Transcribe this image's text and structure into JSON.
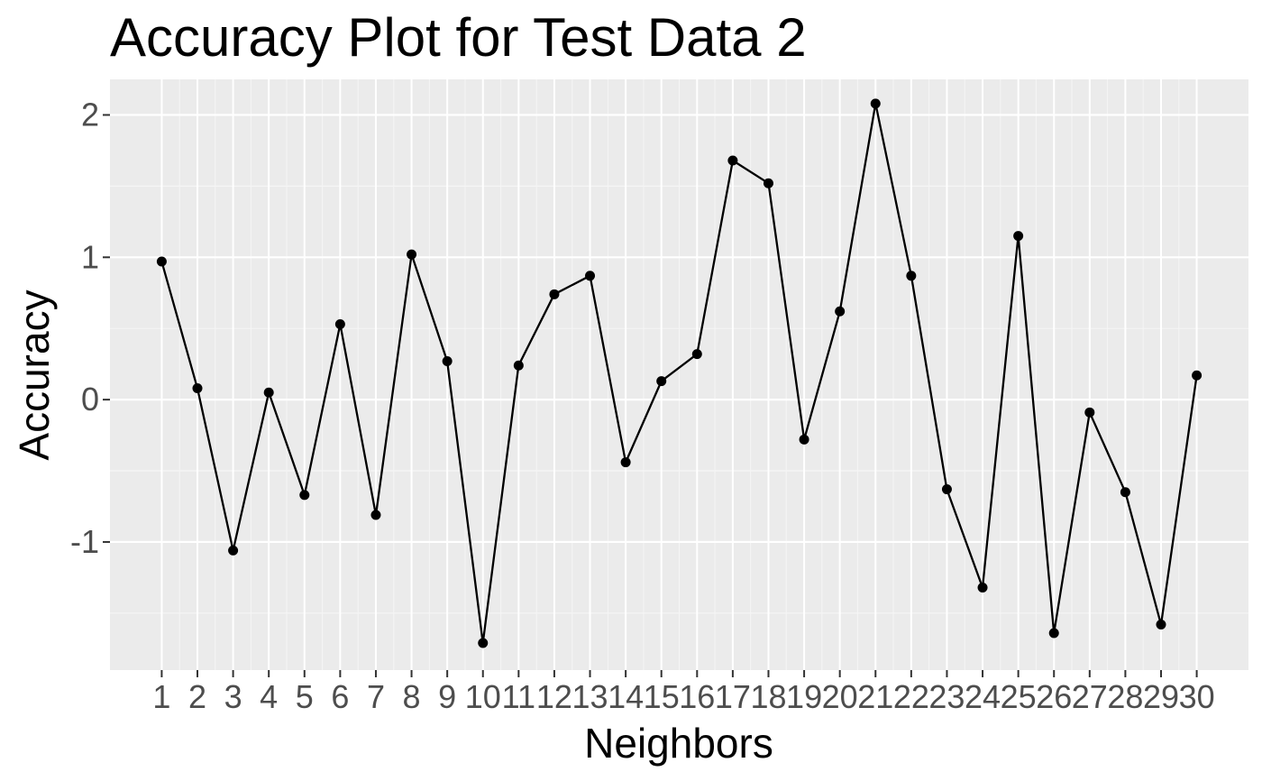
{
  "colors": {
    "panel_background": "#ebebeb",
    "grid_major": "#ffffff",
    "grid_minor": "#f5f5f5",
    "line": "#000000",
    "points": "#000000",
    "tick_text": "#4d4d4d",
    "title_text": "#000000"
  },
  "chart_data": {
    "type": "line",
    "title": "Accuracy Plot for Test Data 2",
    "xlabel": "Neighbors",
    "ylabel": "Accuracy",
    "x": [
      1,
      2,
      3,
      4,
      5,
      6,
      7,
      8,
      9,
      10,
      11,
      12,
      13,
      14,
      15,
      16,
      17,
      18,
      19,
      20,
      21,
      22,
      23,
      24,
      25,
      26,
      27,
      28,
      29,
      30
    ],
    "y": [
      0.97,
      0.08,
      -1.06,
      0.05,
      -0.67,
      0.53,
      -0.81,
      1.02,
      0.27,
      -1.71,
      0.24,
      0.74,
      0.87,
      -0.44,
      0.13,
      0.32,
      1.68,
      1.52,
      -0.28,
      0.62,
      2.08,
      0.87,
      -0.63,
      -1.32,
      1.15,
      -1.64,
      -0.09,
      -0.65,
      -1.58,
      0.17
    ],
    "x_ticks": [
      "1",
      "2",
      "3",
      "4",
      "5",
      "6",
      "7",
      "8",
      "9",
      "10",
      "11",
      "12",
      "13",
      "14",
      "15",
      "16",
      "17",
      "18",
      "19",
      "20",
      "21",
      "22",
      "23",
      "24",
      "25",
      "26",
      "27",
      "28",
      "29",
      "30"
    ],
    "y_ticks": [
      "-1",
      "0",
      "1",
      "2"
    ],
    "xlim": [
      -0.45,
      31.45
    ],
    "ylim": [
      -1.9,
      2.25
    ],
    "grid": true,
    "markers": true,
    "legend": "none"
  }
}
